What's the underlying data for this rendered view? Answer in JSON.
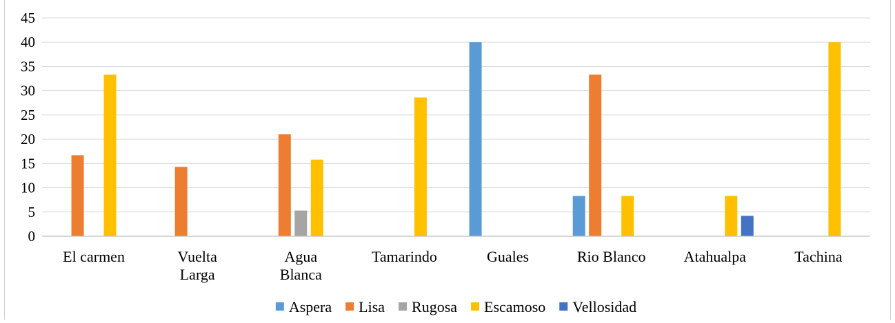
{
  "chart_data": {
    "type": "bar",
    "title": "",
    "xlabel": "",
    "ylabel": "",
    "ylim": [
      0,
      45
    ],
    "yticks": [
      0,
      5,
      10,
      15,
      20,
      25,
      30,
      35,
      40,
      45
    ],
    "grid": true,
    "legend_position": "bottom",
    "categories": [
      [
        "El carmen"
      ],
      [
        "Vuelta",
        "Larga"
      ],
      [
        "Agua",
        "Blanca"
      ],
      [
        "Tamarindo"
      ],
      [
        "Guales"
      ],
      [
        "Rio Blanco"
      ],
      [
        "Atahualpa"
      ],
      [
        "Tachina"
      ]
    ],
    "series": [
      {
        "name": "Aspera",
        "color": "#5B9BD5",
        "values": [
          0,
          0,
          0,
          0,
          40,
          8.3,
          0,
          0
        ]
      },
      {
        "name": "Lisa",
        "color": "#ED7D31",
        "values": [
          16.7,
          14.3,
          21,
          0,
          0,
          33.3,
          0,
          0
        ]
      },
      {
        "name": "Rugosa",
        "color": "#A5A5A5",
        "values": [
          0,
          0,
          5.3,
          0,
          0,
          0,
          0,
          0
        ]
      },
      {
        "name": "Escamoso",
        "color": "#FFC000",
        "values": [
          33.3,
          0,
          15.8,
          28.6,
          0,
          8.3,
          8.3,
          40
        ]
      },
      {
        "name": "Vellosidad",
        "color": "#4472C4",
        "values": [
          0,
          0,
          0,
          0,
          0,
          0,
          4.2,
          0
        ]
      }
    ]
  }
}
